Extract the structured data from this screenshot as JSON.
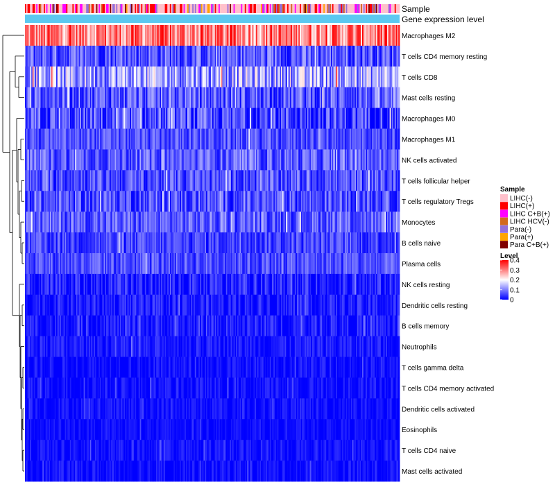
{
  "chart_data": {
    "type": "heatmap",
    "title": "",
    "annotation_tracks": [
      "Sample",
      "Gene expression level"
    ],
    "rows": [
      {
        "label": "Macrophages M2",
        "mean": 0.3,
        "spread": 0.1
      },
      {
        "label": "T cells CD4 memory resting",
        "mean": 0.07,
        "spread": 0.07
      },
      {
        "label": "T cells CD8",
        "mean": 0.13,
        "spread": 0.1
      },
      {
        "label": "Mast cells resting",
        "mean": 0.07,
        "spread": 0.07
      },
      {
        "label": "Macrophages M0",
        "mean": 0.05,
        "spread": 0.08
      },
      {
        "label": "Macrophages M1",
        "mean": 0.06,
        "spread": 0.05
      },
      {
        "label": "NK cells activated",
        "mean": 0.07,
        "spread": 0.06
      },
      {
        "label": "T cells follicular helper",
        "mean": 0.06,
        "spread": 0.06
      },
      {
        "label": "T cells regulatory  Tregs",
        "mean": 0.06,
        "spread": 0.06
      },
      {
        "label": "Monocytes",
        "mean": 0.07,
        "spread": 0.06
      },
      {
        "label": "B cells naive",
        "mean": 0.05,
        "spread": 0.05
      },
      {
        "label": "Plasma cells",
        "mean": 0.06,
        "spread": 0.05
      },
      {
        "label": "NK cells resting",
        "mean": 0.02,
        "spread": 0.05
      },
      {
        "label": "Dendritic cells resting",
        "mean": 0.02,
        "spread": 0.04
      },
      {
        "label": "B cells memory",
        "mean": 0.02,
        "spread": 0.04
      },
      {
        "label": "Neutrophils",
        "mean": 0.02,
        "spread": 0.03
      },
      {
        "label": "T cells gamma delta",
        "mean": 0.01,
        "spread": 0.03
      },
      {
        "label": "T cells CD4 memory activated",
        "mean": 0.01,
        "spread": 0.03
      },
      {
        "label": "Dendritic cells activated",
        "mean": 0.01,
        "spread": 0.03
      },
      {
        "label": "Eosinophils",
        "mean": 0.01,
        "spread": 0.02
      },
      {
        "label": "T cells CD4 naive",
        "mean": 0.01,
        "spread": 0.03
      },
      {
        "label": "Mast cells activated",
        "mean": 0.01,
        "spread": 0.03
      }
    ],
    "n_columns": 300,
    "legend": {
      "position": "right",
      "sample": {
        "title": "Sample",
        "entries": [
          {
            "label": "LIHC(-)",
            "color": "#ffc0cb"
          },
          {
            "label": "LIHC(+)",
            "color": "#ff0000"
          },
          {
            "label": "LIHC C+B(+)",
            "color": "#ff00ff"
          },
          {
            "label": "LIHC HCV(-)",
            "color": "#d2691e"
          },
          {
            "label": "Para(-)",
            "color": "#9370db"
          },
          {
            "label": "Para(+)",
            "color": "#ffa500"
          },
          {
            "label": "Para C+B(+)",
            "color": "#800000"
          }
        ]
      },
      "level": {
        "title": "Level",
        "ticks": [
          "0.4",
          "0.3",
          "0.2",
          "0.1",
          "0"
        ],
        "tick_values": [
          0.4,
          0.3,
          0.2,
          0.1,
          0
        ],
        "range": [
          0,
          0.4
        ],
        "colors": [
          "#0000ff",
          "#ffffff",
          "#ff0000"
        ]
      }
    },
    "gene_expression_color": "#5cc8f0"
  }
}
